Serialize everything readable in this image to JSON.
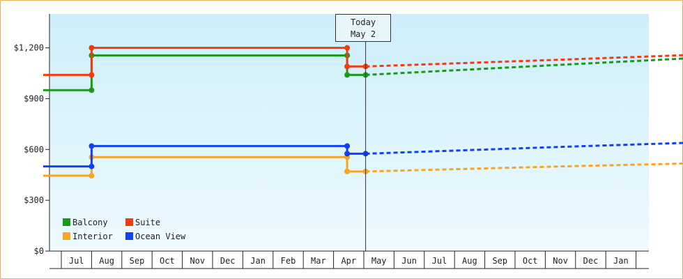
{
  "chart_data": {
    "type": "line",
    "title": "",
    "xlabel": "",
    "ylabel": "",
    "ylim": [
      0,
      1400
    ],
    "yticks": [
      {
        "value": 0,
        "label": "$0"
      },
      {
        "value": 300,
        "label": "$300"
      },
      {
        "value": 600,
        "label": "$600"
      },
      {
        "value": 900,
        "label": "$900"
      },
      {
        "value": 1200,
        "label": "$1,200"
      }
    ],
    "x_months": [
      "Jul",
      "Aug",
      "Sep",
      "Oct",
      "Nov",
      "Dec",
      "Jan",
      "Feb",
      "Mar",
      "Apr",
      "May",
      "Jun",
      "Jul",
      "Aug",
      "Sep",
      "Oct",
      "Nov",
      "Dec",
      "Jan"
    ],
    "today_label": [
      "Today",
      "May 2"
    ],
    "today_month_index": 10.06,
    "legend_position": "bottom-left",
    "grid": false,
    "series": [
      {
        "name": "Balcony",
        "color": "#1a9a1a",
        "history": [
          [
            -0.6,
            950
          ],
          [
            1.0,
            950
          ],
          [
            1.0,
            1155
          ],
          [
            9.45,
            1155
          ],
          [
            9.45,
            1040
          ],
          [
            10.06,
            1040
          ]
        ],
        "forecast": [
          [
            10.06,
            1040
          ],
          [
            16.5,
            1100
          ],
          [
            22.6,
            1155
          ]
        ]
      },
      {
        "name": "Suite",
        "color": "#f03c10",
        "history": [
          [
            -0.6,
            1040
          ],
          [
            1.0,
            1040
          ],
          [
            1.0,
            1200
          ],
          [
            9.45,
            1200
          ],
          [
            9.45,
            1090
          ],
          [
            10.06,
            1090
          ]
        ],
        "forecast": [
          [
            10.06,
            1090
          ],
          [
            16.5,
            1130
          ],
          [
            22.6,
            1170
          ]
        ]
      },
      {
        "name": "Interior",
        "color": "#f5a623",
        "history": [
          [
            -0.6,
            445
          ],
          [
            1.0,
            445
          ],
          [
            1.0,
            555
          ],
          [
            9.45,
            555
          ],
          [
            9.45,
            470
          ],
          [
            10.06,
            470
          ]
        ],
        "forecast": [
          [
            10.06,
            470
          ],
          [
            16.5,
            500
          ],
          [
            22.6,
            525
          ]
        ]
      },
      {
        "name": "Ocean View",
        "color": "#1040f0",
        "history": [
          [
            -0.6,
            500
          ],
          [
            1.0,
            500
          ],
          [
            1.0,
            620
          ],
          [
            9.45,
            620
          ],
          [
            9.45,
            575
          ],
          [
            10.06,
            575
          ]
        ],
        "forecast": [
          [
            10.06,
            575
          ],
          [
            16.5,
            615
          ],
          [
            22.6,
            650
          ]
        ]
      }
    ]
  }
}
